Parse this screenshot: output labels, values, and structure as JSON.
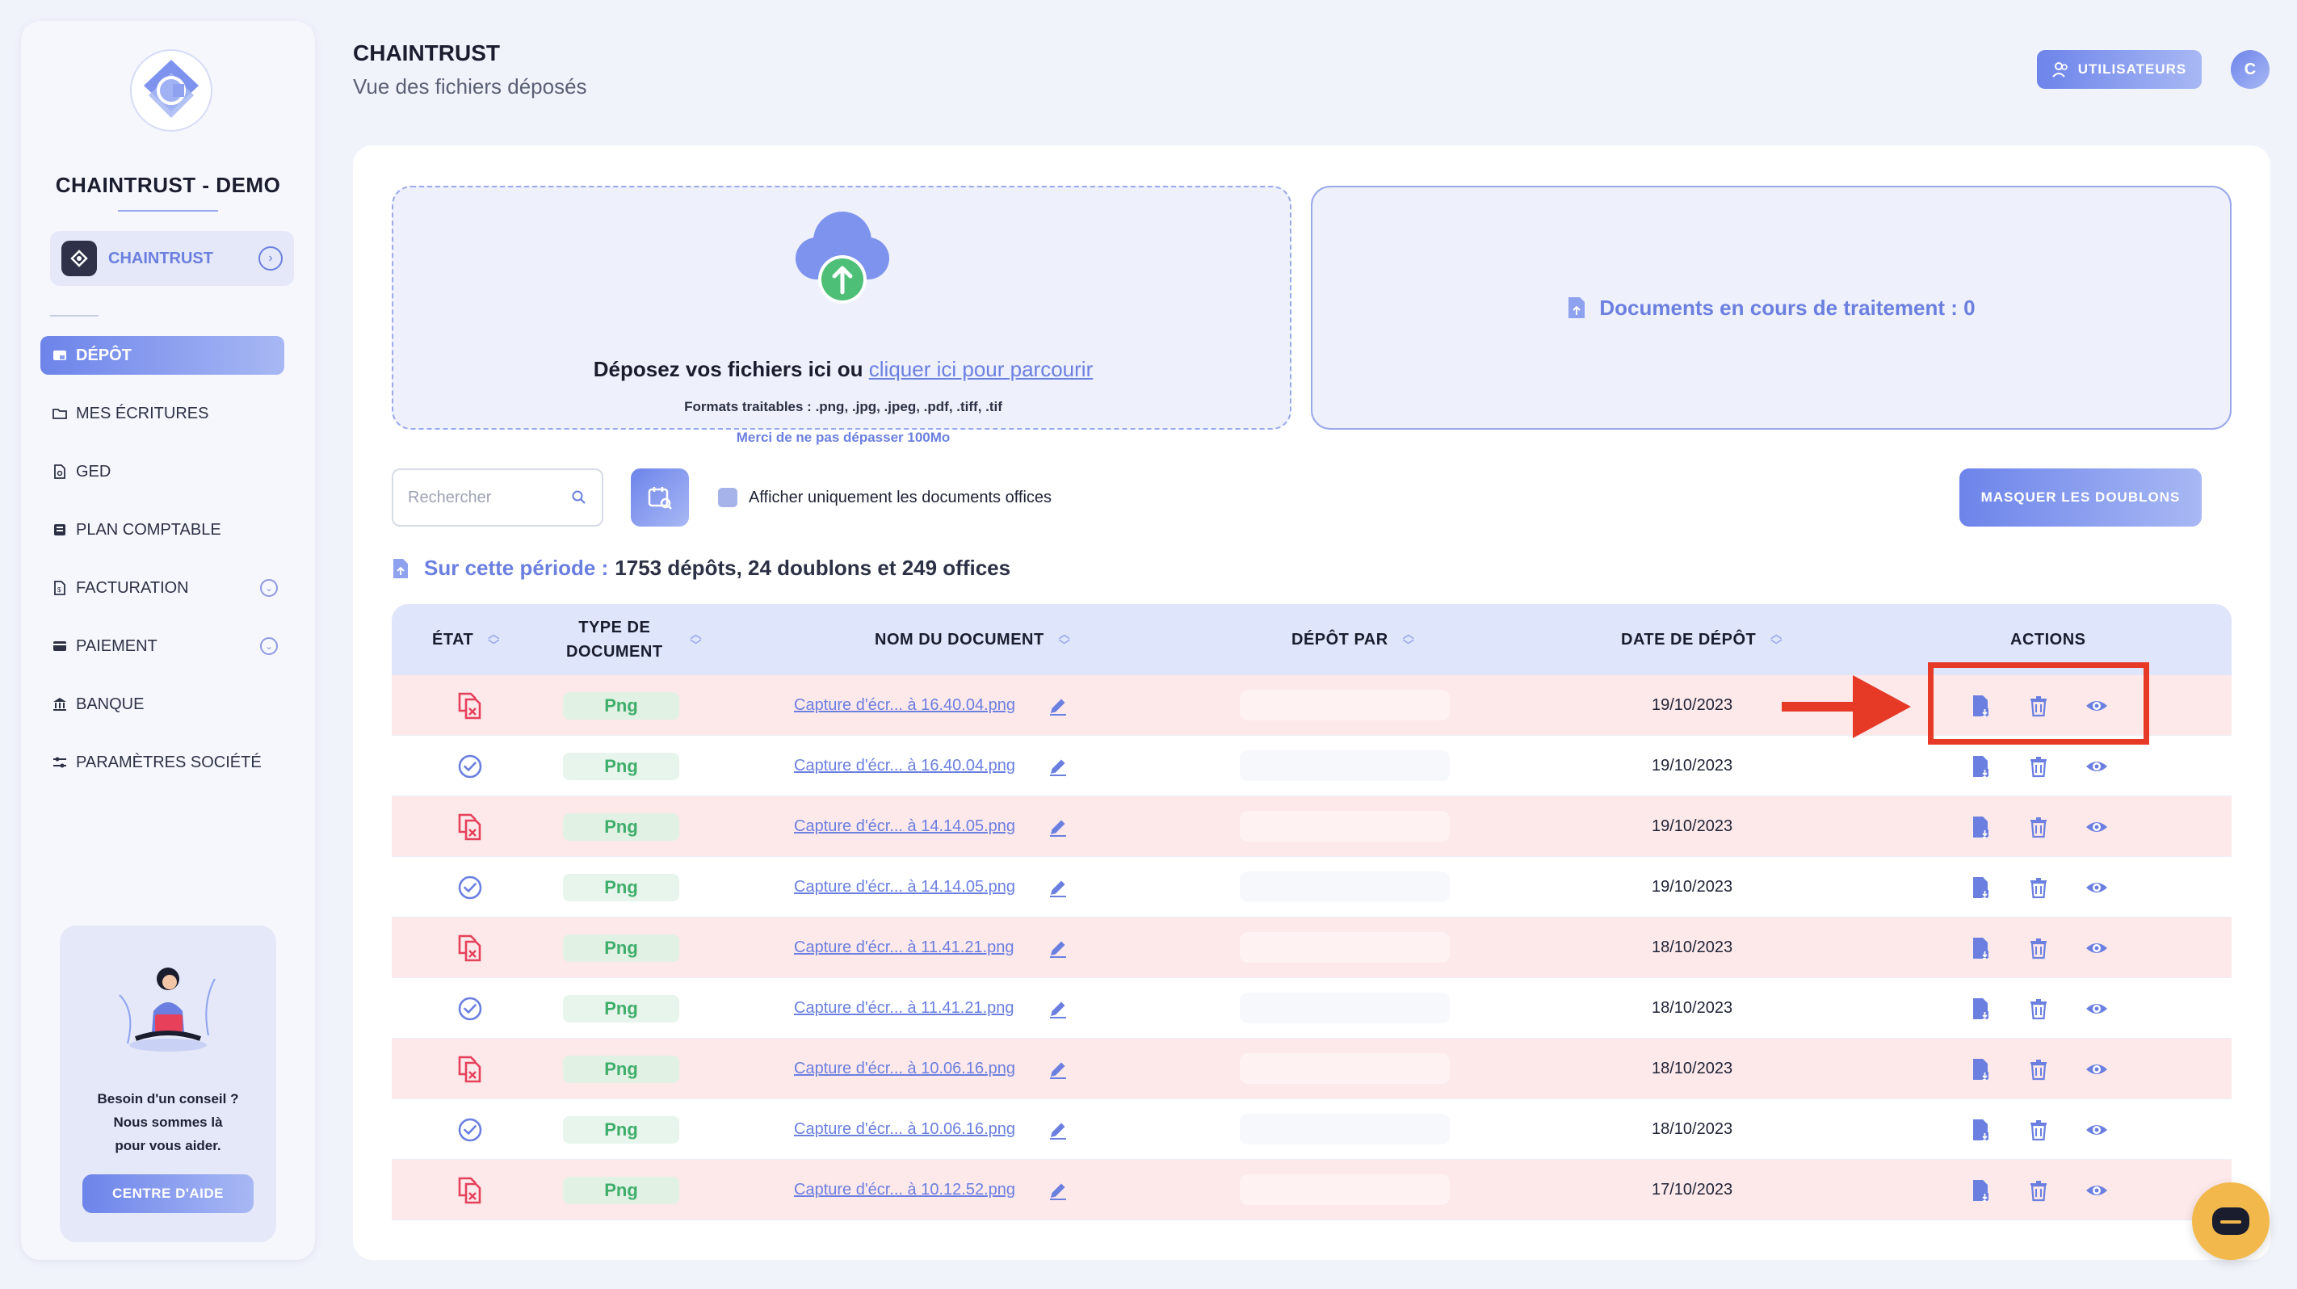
{
  "sidebar": {
    "brand": "CHAINTRUST - DEMO",
    "company_label": "CHAINTRUST",
    "items": [
      {
        "label": "DÉPÔT",
        "active": true
      },
      {
        "label": "MES ÉCRITURES"
      },
      {
        "label": "GED"
      },
      {
        "label": "PLAN COMPTABLE"
      },
      {
        "label": "FACTURATION"
      },
      {
        "label": "PAIEMENT"
      },
      {
        "label": "BANQUE"
      },
      {
        "label": "PARAMÈTRES SOCIÉTÉ"
      }
    ],
    "help": {
      "line1": "Besoin d'un conseil ?",
      "line2": "Nous sommes là",
      "line3": "pour vous aider.",
      "button": "CENTRE D'AIDE"
    }
  },
  "header": {
    "title": "CHAINTRUST",
    "subtitle": "Vue des fichiers déposés",
    "users_button": "UTILISATEURS",
    "avatar_initial": "C"
  },
  "dropzone": {
    "main_text": "Déposez vos fichiers ici ou",
    "link_text": "cliquer ici pour parcourir",
    "formats": "Formats traitables : .png, .jpg, .jpeg, .pdf, .tiff, .tif",
    "limit": "Merci de ne pas dépasser 100Mo"
  },
  "processing": {
    "text": "Documents en cours de traitement : 0"
  },
  "toolbar": {
    "search_placeholder": "Rechercher",
    "checkbox_label": "Afficher uniquement les documents offices",
    "hide_duplicates": "MASQUER LES DOUBLONS"
  },
  "period": {
    "label": "Sur cette période :",
    "value": "1753 dépôts, 24 doublons et 249 offices"
  },
  "table": {
    "headers": {
      "etat": "ÉTAT",
      "type_line1": "TYPE DE",
      "type_line2": "DOCUMENT",
      "nom": "NOM DU DOCUMENT",
      "depot_par": "DÉPÔT PAR",
      "date": "DATE DE DÉPÔT",
      "actions": "ACTIONS"
    },
    "rows": [
      {
        "status": "duplicate",
        "type": "Png",
        "name": "Capture d'écr... à 16.40.04.png",
        "date": "19/10/2023"
      },
      {
        "status": "ok",
        "type": "Png",
        "name": "Capture d'écr... à 16.40.04.png",
        "date": "19/10/2023"
      },
      {
        "status": "duplicate",
        "type": "Png",
        "name": "Capture d'écr... à 14.14.05.png",
        "date": "19/10/2023"
      },
      {
        "status": "ok",
        "type": "Png",
        "name": "Capture d'écr... à 14.14.05.png",
        "date": "19/10/2023"
      },
      {
        "status": "duplicate",
        "type": "Png",
        "name": "Capture d'écr... à 11.41.21.png",
        "date": "18/10/2023"
      },
      {
        "status": "ok",
        "type": "Png",
        "name": "Capture d'écr... à 11.41.21.png",
        "date": "18/10/2023"
      },
      {
        "status": "duplicate",
        "type": "Png",
        "name": "Capture d'écr... à 10.06.16.png",
        "date": "18/10/2023"
      },
      {
        "status": "ok",
        "type": "Png",
        "name": "Capture d'écr... à 10.06.16.png",
        "date": "18/10/2023"
      },
      {
        "status": "duplicate",
        "type": "Png",
        "name": "Capture d'écr... à 10.12.52.png",
        "date": "17/10/2023"
      }
    ]
  },
  "colors": {
    "accent": "#6b7fe0",
    "duplicate_row": "#fde8ea",
    "duplicate_icon": "#e6405a",
    "ok_icon": "#6b7fe0",
    "annotation": "#e63a27",
    "chat": "#f2b84b"
  }
}
